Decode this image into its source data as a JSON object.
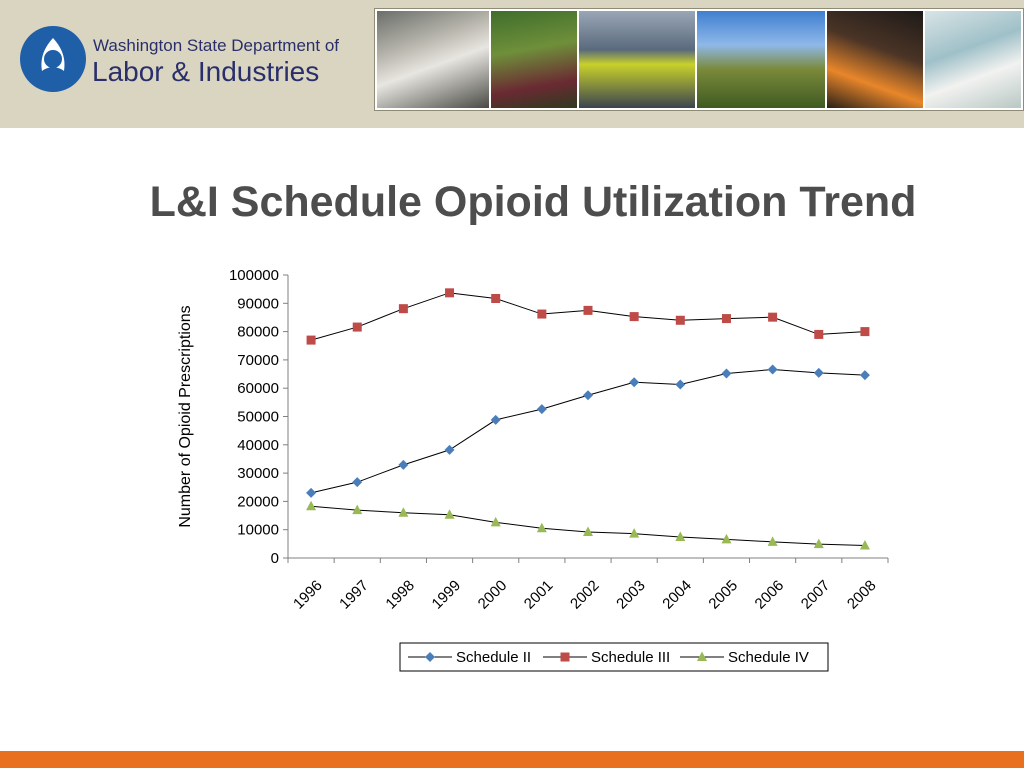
{
  "header": {
    "logo_line1": "Washington State Department of",
    "logo_line2": "Labor & Industries",
    "photos": [
      "worker-sanding-photo",
      "worker-harvest-photo",
      "worker-construction-photo",
      "farm-workers-photo",
      "foundry-worker-photo",
      "lab-worker-photo"
    ]
  },
  "slide": {
    "title": "L&I Schedule Opioid Utilization Trend"
  },
  "colors": {
    "header_bg": "#d9d5c0",
    "bottom_bar": "#e8701f",
    "schedule_ii": "#4a7ebb",
    "schedule_iii": "#be4b48",
    "schedule_iv": "#98b954"
  },
  "chart_data": {
    "type": "line",
    "title": "",
    "xlabel": "",
    "ylabel": "Number of Opioid Prescriptions",
    "categories": [
      "1996",
      "1997",
      "1998",
      "1999",
      "2000",
      "2001",
      "2002",
      "2003",
      "2004",
      "2005",
      "2006",
      "2007",
      "2008"
    ],
    "ylim": [
      0,
      100000
    ],
    "yticks": [
      0,
      10000,
      20000,
      30000,
      40000,
      50000,
      60000,
      70000,
      80000,
      90000,
      100000
    ],
    "grid": false,
    "legend_position": "bottom",
    "series": [
      {
        "name": "Schedule II",
        "marker": "diamond",
        "color": "#4a7ebb",
        "values": [
          23000,
          26800,
          32900,
          38200,
          48800,
          52600,
          57500,
          62100,
          61300,
          65200,
          66600,
          65400,
          64600
        ]
      },
      {
        "name": "Schedule III",
        "marker": "square",
        "color": "#be4b48",
        "values": [
          77000,
          81600,
          88100,
          93700,
          91700,
          86200,
          87500,
          85300,
          84000,
          84600,
          85100,
          79000,
          80000
        ]
      },
      {
        "name": "Schedule IV",
        "marker": "triangle",
        "color": "#98b954",
        "values": [
          18300,
          16900,
          16000,
          15300,
          12600,
          10500,
          9200,
          8600,
          7400,
          6600,
          5700,
          4900,
          4400
        ]
      }
    ]
  }
}
